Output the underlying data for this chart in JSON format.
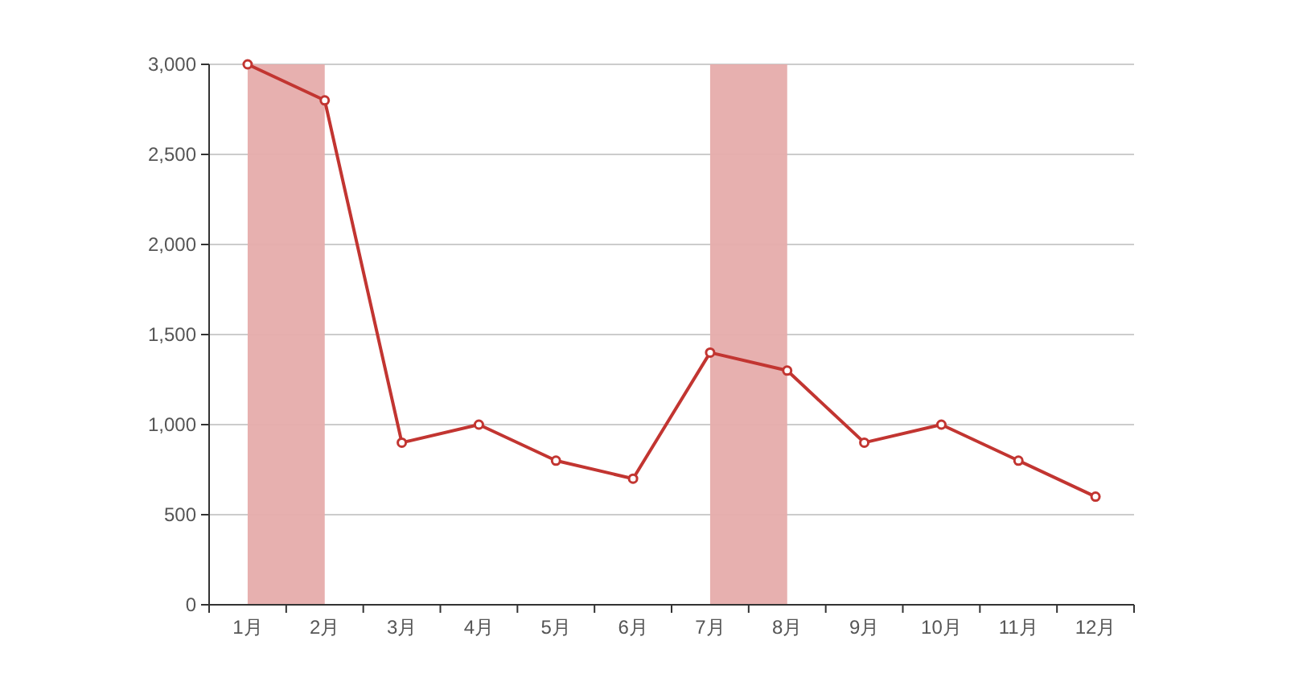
{
  "chart_data": {
    "type": "line",
    "categories": [
      "1月",
      "2月",
      "3月",
      "4月",
      "5月",
      "6月",
      "7月",
      "8月",
      "9月",
      "10月",
      "11月",
      "12月"
    ],
    "series": [
      {
        "color": "#c23531",
        "values": [
          3000,
          2800,
          900,
          1000,
          800,
          700,
          1400,
          1300,
          900,
          1000,
          800,
          600
        ]
      }
    ],
    "ylim": [
      0,
      3000
    ],
    "yticks": [
      0,
      {
        "value": 500,
        "label": "500"
      },
      {
        "value": 1000,
        "label": "1,000"
      },
      {
        "value": 1500,
        "label": "1,500"
      },
      {
        "value": 2000,
        "label": "2,000"
      },
      {
        "value": 2500,
        "label": "2,500"
      },
      {
        "value": 3000,
        "label": "3,000"
      }
    ],
    "bands": [
      {
        "axis": "x",
        "from": "1月",
        "to": "2月",
        "color": "#e6acab"
      },
      {
        "axis": "x",
        "from": "7月",
        "to": "8月",
        "color": "#e6acab"
      }
    ],
    "grid": "y",
    "marker": "circle",
    "line_style": "solid"
  }
}
